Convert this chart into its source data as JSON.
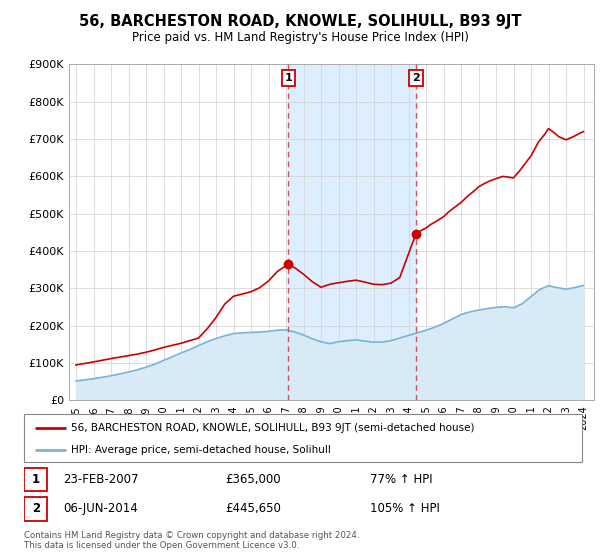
{
  "title": "56, BARCHESTON ROAD, KNOWLE, SOLIHULL, B93 9JT",
  "subtitle": "Price paid vs. HM Land Registry's House Price Index (HPI)",
  "ylim": [
    0,
    900000
  ],
  "yticks": [
    0,
    100000,
    200000,
    300000,
    400000,
    500000,
    600000,
    700000,
    800000,
    900000
  ],
  "ytick_labels": [
    "£0",
    "£100K",
    "£200K",
    "£300K",
    "£400K",
    "£500K",
    "£600K",
    "£700K",
    "£800K",
    "£900K"
  ],
  "sale1_price": 365000,
  "sale1_label": "23-FEB-2007",
  "sale1_hpi": "77% ↑ HPI",
  "sale1_x": 2007.14,
  "sale2_price": 445650,
  "sale2_label": "06-JUN-2014",
  "sale2_hpi": "105% ↑ HPI",
  "sale2_x": 2014.42,
  "property_line_color": "#cc0000",
  "hpi_line_color": "#7ab3d8",
  "hpi_fill_color": "#d8eaf6",
  "shaded_region_color": "#ddeeff",
  "vline_color": "#cc4444",
  "legend_label_property": "56, BARCHESTON ROAD, KNOWLE, SOLIHULL, B93 9JT (semi-detached house)",
  "legend_label_hpi": "HPI: Average price, semi-detached house, Solihull",
  "footer_text": "Contains HM Land Registry data © Crown copyright and database right 2024.\nThis data is licensed under the Open Government Licence v3.0.",
  "xlim_left": 1994.6,
  "xlim_right": 2024.6,
  "hpi_x": [
    1995,
    1995.5,
    1996,
    1996.5,
    1997,
    1997.5,
    1998,
    1998.5,
    1999,
    1999.5,
    2000,
    2000.5,
    2001,
    2001.5,
    2002,
    2002.5,
    2003,
    2003.5,
    2004,
    2004.5,
    2005,
    2005.5,
    2006,
    2006.5,
    2007,
    2007.5,
    2008,
    2008.5,
    2009,
    2009.5,
    2010,
    2010.5,
    2011,
    2011.5,
    2012,
    2012.5,
    2013,
    2013.5,
    2014,
    2014.5,
    2015,
    2015.5,
    2016,
    2016.5,
    2017,
    2017.5,
    2018,
    2018.5,
    2019,
    2019.5,
    2020,
    2020.5,
    2021,
    2021.5,
    2022,
    2022.5,
    2023,
    2023.5,
    2024
  ],
  "hpi_y": [
    52000,
    55000,
    58000,
    62000,
    66000,
    71000,
    76000,
    82000,
    89000,
    97000,
    107000,
    117000,
    127000,
    136000,
    147000,
    157000,
    166000,
    173000,
    179000,
    181000,
    182000,
    183000,
    185000,
    188000,
    189000,
    183000,
    175000,
    165000,
    157000,
    152000,
    157000,
    160000,
    162000,
    159000,
    156000,
    156000,
    160000,
    167000,
    174000,
    181000,
    188000,
    196000,
    206000,
    218000,
    230000,
    237000,
    242000,
    246000,
    249000,
    251000,
    248000,
    259000,
    278000,
    297000,
    307000,
    302000,
    298000,
    302000,
    308000
  ],
  "property_x": [
    1995.0,
    1996.0,
    1997.0,
    1997.5,
    1998.0,
    1998.5,
    1999.0,
    1999.5,
    2000.0,
    2001.0,
    2002.0,
    2002.5,
    2003.0,
    2003.5,
    2004.0,
    2004.5,
    2005.0,
    2005.5,
    2006.0,
    2006.5,
    2007.14,
    2007.6,
    2008.0,
    2008.5,
    2009.0,
    2009.3,
    2009.6,
    2010.0,
    2010.5,
    2011.0,
    2011.5,
    2012.0,
    2012.5,
    2013.0,
    2013.5,
    2014.42,
    2014.6,
    2015.0,
    2015.3,
    2015.6,
    2016.0,
    2016.3,
    2016.6,
    2017.0,
    2017.4,
    2017.8,
    2018.0,
    2018.3,
    2018.6,
    2019.0,
    2019.4,
    2019.7,
    2020.0,
    2020.4,
    2021.0,
    2021.4,
    2021.8,
    2022.0,
    2022.3,
    2022.6,
    2023.0,
    2023.4,
    2023.8,
    2024.0
  ],
  "property_y": [
    95000,
    103000,
    112000,
    116000,
    120000,
    124000,
    129000,
    135000,
    142000,
    153000,
    167000,
    192000,
    222000,
    258000,
    279000,
    285000,
    291000,
    302000,
    320000,
    345000,
    365000,
    352000,
    338000,
    318000,
    303000,
    308000,
    312000,
    315000,
    319000,
    322000,
    317000,
    311000,
    310000,
    314000,
    329000,
    445650,
    452000,
    462000,
    472000,
    480000,
    492000,
    505000,
    516000,
    530000,
    548000,
    563000,
    572000,
    580000,
    587000,
    594000,
    600000,
    598000,
    596000,
    618000,
    655000,
    690000,
    714000,
    728000,
    718000,
    706000,
    698000,
    706000,
    716000,
    720000
  ]
}
